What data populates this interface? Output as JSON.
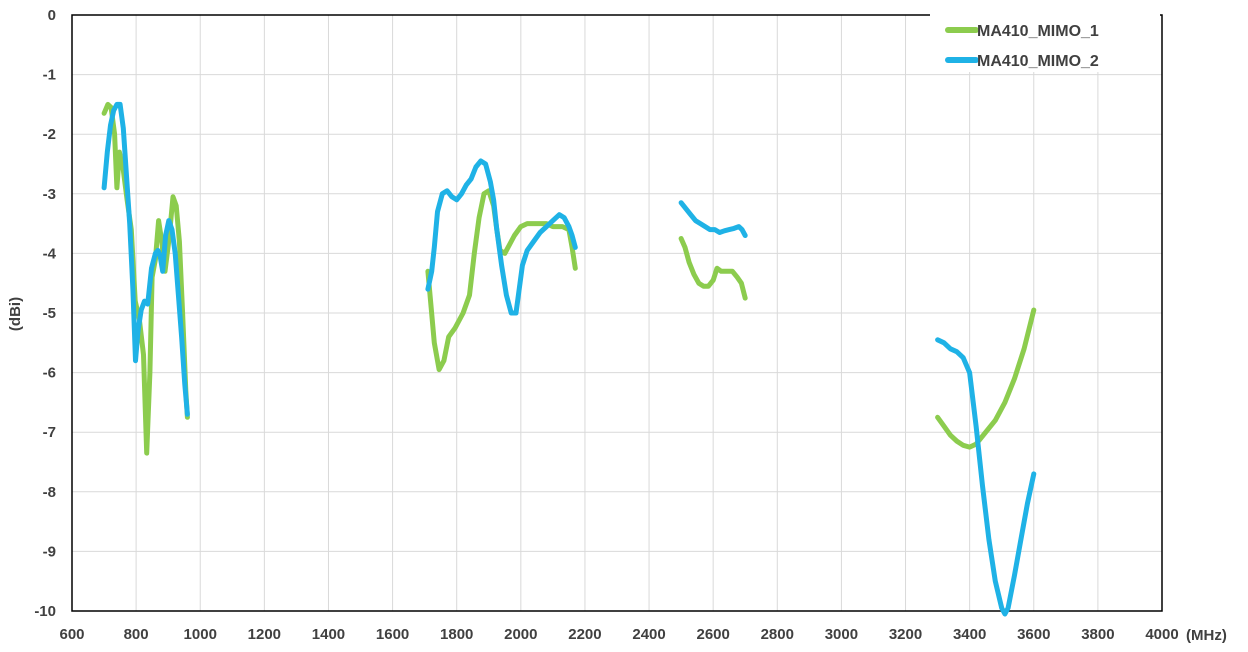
{
  "chart_data": {
    "type": "line",
    "title": "",
    "xlabel": "(MHz)",
    "ylabel": "(dBi)",
    "xlim": [
      600,
      4000
    ],
    "ylim": [
      -10,
      0
    ],
    "x_ticks": [
      600,
      800,
      1000,
      1200,
      1400,
      1600,
      1800,
      2000,
      2200,
      2400,
      2600,
      2800,
      3000,
      3200,
      3400,
      3600,
      3800,
      4000
    ],
    "y_ticks": [
      0,
      -1,
      -2,
      -3,
      -4,
      -5,
      -6,
      -7,
      -8,
      -9,
      -10
    ],
    "grid": true,
    "legend_position": "top-right",
    "series": [
      {
        "name": "MA410_MIMO_1",
        "color": "#8ccc4e",
        "segments": [
          [
            [
              700,
              -1.65
            ],
            [
              712,
              -1.5
            ],
            [
              722,
              -1.55
            ],
            [
              733,
              -2.0
            ],
            [
              740,
              -2.9
            ],
            [
              748,
              -2.3
            ],
            [
              760,
              -2.6
            ],
            [
              772,
              -3.1
            ],
            [
              785,
              -3.6
            ],
            [
              797,
              -4.8
            ],
            [
              810,
              -5.1
            ],
            [
              823,
              -5.7
            ],
            [
              833,
              -7.35
            ],
            [
              843,
              -6.0
            ],
            [
              850,
              -4.4
            ],
            [
              860,
              -4.1
            ],
            [
              870,
              -3.45
            ],
            [
              880,
              -3.8
            ],
            [
              890,
              -4.3
            ],
            [
              903,
              -3.75
            ],
            [
              915,
              -3.05
            ],
            [
              925,
              -3.2
            ],
            [
              935,
              -3.8
            ],
            [
              945,
              -5.0
            ],
            [
              955,
              -6.3
            ],
            [
              960,
              -6.75
            ]
          ],
          [
            [
              1710,
              -4.3
            ],
            [
              1720,
              -4.9
            ],
            [
              1730,
              -5.5
            ],
            [
              1745,
              -5.95
            ],
            [
              1760,
              -5.8
            ],
            [
              1775,
              -5.4
            ],
            [
              1795,
              -5.25
            ],
            [
              1820,
              -5.0
            ],
            [
              1840,
              -4.7
            ],
            [
              1855,
              -4.0
            ],
            [
              1870,
              -3.4
            ],
            [
              1885,
              -3.0
            ],
            [
              1900,
              -2.95
            ],
            [
              1915,
              -3.2
            ],
            [
              1925,
              -3.6
            ],
            [
              1935,
              -3.95
            ],
            [
              1950,
              -4.0
            ],
            [
              1965,
              -3.85
            ],
            [
              1980,
              -3.7
            ],
            [
              2000,
              -3.55
            ],
            [
              2020,
              -3.5
            ],
            [
              2050,
              -3.5
            ],
            [
              2080,
              -3.5
            ],
            [
              2100,
              -3.55
            ],
            [
              2130,
              -3.55
            ],
            [
              2150,
              -3.6
            ],
            [
              2160,
              -3.9
            ],
            [
              2170,
              -4.25
            ]
          ],
          [
            [
              2500,
              -3.75
            ],
            [
              2512,
              -3.9
            ],
            [
              2525,
              -4.15
            ],
            [
              2540,
              -4.35
            ],
            [
              2555,
              -4.5
            ],
            [
              2570,
              -4.55
            ],
            [
              2585,
              -4.55
            ],
            [
              2600,
              -4.45
            ],
            [
              2612,
              -4.25
            ],
            [
              2625,
              -4.3
            ],
            [
              2640,
              -4.3
            ],
            [
              2660,
              -4.3
            ],
            [
              2675,
              -4.4
            ],
            [
              2688,
              -4.5
            ],
            [
              2700,
              -4.75
            ]
          ],
          [
            [
              3300,
              -6.75
            ],
            [
              3320,
              -6.9
            ],
            [
              3340,
              -7.05
            ],
            [
              3360,
              -7.15
            ],
            [
              3380,
              -7.22
            ],
            [
              3400,
              -7.25
            ],
            [
              3420,
              -7.2
            ],
            [
              3450,
              -7.0
            ],
            [
              3480,
              -6.8
            ],
            [
              3510,
              -6.5
            ],
            [
              3540,
              -6.1
            ],
            [
              3570,
              -5.6
            ],
            [
              3600,
              -4.95
            ]
          ]
        ]
      },
      {
        "name": "MA410_MIMO_2",
        "color": "#1fb2e6",
        "segments": [
          [
            [
              700,
              -2.9
            ],
            [
              710,
              -2.3
            ],
            [
              720,
              -1.85
            ],
            [
              730,
              -1.6
            ],
            [
              740,
              -1.5
            ],
            [
              750,
              -1.5
            ],
            [
              760,
              -1.9
            ],
            [
              770,
              -2.7
            ],
            [
              780,
              -3.5
            ],
            [
              790,
              -4.6
            ],
            [
              798,
              -5.8
            ],
            [
              806,
              -5.3
            ],
            [
              816,
              -4.95
            ],
            [
              826,
              -4.8
            ],
            [
              836,
              -4.85
            ],
            [
              848,
              -4.25
            ],
            [
              860,
              -4.0
            ],
            [
              868,
              -3.95
            ],
            [
              875,
              -4.05
            ],
            [
              883,
              -4.3
            ],
            [
              892,
              -3.7
            ],
            [
              902,
              -3.45
            ],
            [
              912,
              -3.6
            ],
            [
              922,
              -4.0
            ],
            [
              932,
              -4.7
            ],
            [
              942,
              -5.4
            ],
            [
              952,
              -6.2
            ],
            [
              960,
              -6.7
            ]
          ],
          [
            [
              1710,
              -4.6
            ],
            [
              1722,
              -4.3
            ],
            [
              1730,
              -3.9
            ],
            [
              1740,
              -3.3
            ],
            [
              1755,
              -3.0
            ],
            [
              1770,
              -2.95
            ],
            [
              1785,
              -3.05
            ],
            [
              1800,
              -3.1
            ],
            [
              1815,
              -3.0
            ],
            [
              1830,
              -2.85
            ],
            [
              1845,
              -2.75
            ],
            [
              1860,
              -2.55
            ],
            [
              1875,
              -2.45
            ],
            [
              1890,
              -2.5
            ],
            [
              1905,
              -2.8
            ],
            [
              1915,
              -3.1
            ],
            [
              1925,
              -3.6
            ],
            [
              1940,
              -4.2
            ],
            [
              1955,
              -4.7
            ],
            [
              1970,
              -5.0
            ],
            [
              1985,
              -5.0
            ],
            [
              1995,
              -4.6
            ],
            [
              2005,
              -4.2
            ],
            [
              2020,
              -3.95
            ],
            [
              2040,
              -3.8
            ],
            [
              2060,
              -3.65
            ],
            [
              2080,
              -3.55
            ],
            [
              2100,
              -3.45
            ],
            [
              2120,
              -3.35
            ],
            [
              2135,
              -3.4
            ],
            [
              2150,
              -3.55
            ],
            [
              2160,
              -3.7
            ],
            [
              2170,
              -3.9
            ]
          ],
          [
            [
              2500,
              -3.15
            ],
            [
              2515,
              -3.25
            ],
            [
              2530,
              -3.35
            ],
            [
              2545,
              -3.45
            ],
            [
              2560,
              -3.5
            ],
            [
              2575,
              -3.55
            ],
            [
              2590,
              -3.6
            ],
            [
              2605,
              -3.6
            ],
            [
              2620,
              -3.65
            ],
            [
              2635,
              -3.62
            ],
            [
              2650,
              -3.6
            ],
            [
              2665,
              -3.58
            ],
            [
              2680,
              -3.55
            ],
            [
              2690,
              -3.6
            ],
            [
              2700,
              -3.7
            ]
          ],
          [
            [
              3300,
              -5.45
            ],
            [
              3320,
              -5.5
            ],
            [
              3340,
              -5.6
            ],
            [
              3360,
              -5.65
            ],
            [
              3380,
              -5.75
            ],
            [
              3400,
              -6.0
            ],
            [
              3420,
              -6.9
            ],
            [
              3440,
              -7.9
            ],
            [
              3460,
              -8.8
            ],
            [
              3480,
              -9.5
            ],
            [
              3500,
              -9.95
            ],
            [
              3510,
              -10.05
            ],
            [
              3520,
              -9.95
            ],
            [
              3540,
              -9.4
            ],
            [
              3560,
              -8.8
            ],
            [
              3580,
              -8.2
            ],
            [
              3600,
              -7.7
            ]
          ]
        ]
      }
    ]
  }
}
